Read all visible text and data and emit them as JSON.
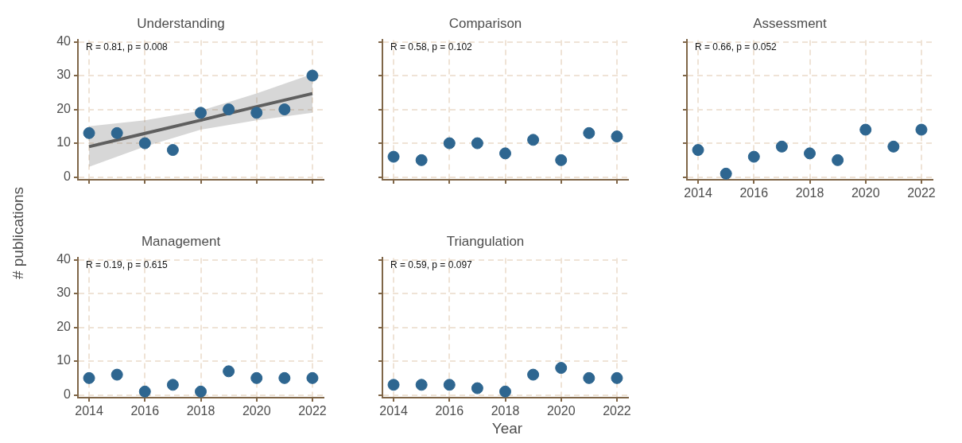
{
  "chart_data": [
    {
      "type": "scatter",
      "title": "Understanding",
      "x": [
        2014,
        2015,
        2016,
        2017,
        2018,
        2019,
        2020,
        2021,
        2022
      ],
      "xlim": [
        2013.6,
        2022.4
      ],
      "ylim": [
        -0.8,
        40.5
      ],
      "xticks": [
        2014,
        2016,
        2018,
        2020,
        2022
      ],
      "yticks": [
        0,
        10,
        20,
        30,
        40
      ],
      "grid": true,
      "marker": "circle",
      "tick_labels": "y",
      "annotations": [
        "R = 0.81, p = 0.008"
      ],
      "series": [
        {
          "color": "#2e6690",
          "values": [
            13,
            13,
            10,
            8,
            19,
            20,
            19,
            20,
            30
          ]
        },
        {
          "type": "line",
          "marker": "none",
          "color": "#5f5f5f",
          "x": [
            2014,
            2016,
            2018,
            2020,
            2022
          ],
          "values": [
            9,
            12.9,
            16.8,
            20.8,
            24.7
          ],
          "lower": [
            3,
            9,
            14,
            16.8,
            19
          ],
          "upper": [
            15,
            16.8,
            19.6,
            24.7,
            30.5
          ]
        }
      ]
    },
    {
      "type": "scatter",
      "title": "Comparison",
      "x": [
        2014,
        2015,
        2016,
        2017,
        2018,
        2019,
        2020,
        2021,
        2022
      ],
      "xlim": [
        2013.6,
        2022.4
      ],
      "ylim": [
        -0.8,
        40.5
      ],
      "xticks": [
        2014,
        2016,
        2018,
        2020,
        2022
      ],
      "yticks": [
        0,
        10,
        20,
        30,
        40
      ],
      "grid": true,
      "marker": "circle",
      "tick_labels": false,
      "annotations": [
        "R = 0.58, p = 0.102"
      ],
      "series": [
        {
          "color": "#2e6690",
          "values": [
            6,
            5,
            10,
            10,
            7,
            11,
            5,
            13,
            12
          ]
        }
      ]
    },
    {
      "type": "scatter",
      "title": "Assessment",
      "x": [
        2014,
        2015,
        2016,
        2017,
        2018,
        2019,
        2020,
        2021,
        2022
      ],
      "xlim": [
        2013.6,
        2022.4
      ],
      "ylim": [
        -0.8,
        40.5
      ],
      "xticks": [
        2014,
        2016,
        2018,
        2020,
        2022
      ],
      "yticks": [
        0,
        10,
        20,
        30,
        40
      ],
      "grid": true,
      "marker": "circle",
      "tick_labels": "x",
      "annotations": [
        "R = 0.66, p = 0.052"
      ],
      "series": [
        {
          "color": "#2e6690",
          "values": [
            8,
            1,
            6,
            9,
            7,
            5,
            14,
            9,
            14
          ]
        }
      ]
    },
    {
      "type": "scatter",
      "title": "Management",
      "ylabel": "# publications",
      "x": [
        2014,
        2015,
        2016,
        2017,
        2018,
        2019,
        2020,
        2021,
        2022
      ],
      "xlim": [
        2013.6,
        2022.4
      ],
      "ylim": [
        -0.8,
        40.5
      ],
      "xticks": [
        2014,
        2016,
        2018,
        2020,
        2022
      ],
      "yticks": [
        0,
        10,
        20,
        30,
        40
      ],
      "grid": true,
      "marker": "circle",
      "annotations": [
        "R = 0.19, p = 0.615"
      ],
      "series": [
        {
          "color": "#2e6690",
          "values": [
            5,
            6,
            1,
            3,
            1,
            7,
            5,
            5,
            5
          ]
        }
      ]
    },
    {
      "type": "scatter",
      "title": "Triangulation",
      "xlabel": "Year",
      "x": [
        2014,
        2015,
        2016,
        2017,
        2018,
        2019,
        2020,
        2021,
        2022
      ],
      "xlim": [
        2013.6,
        2022.4
      ],
      "ylim": [
        -0.8,
        40.5
      ],
      "xticks": [
        2014,
        2016,
        2018,
        2020,
        2022
      ],
      "yticks": [
        0,
        10,
        20,
        30,
        40
      ],
      "grid": true,
      "marker": "circle",
      "tick_labels": "x",
      "annotations": [
        "R = 0.59, p = 0.097"
      ],
      "series": [
        {
          "color": "#2e6690",
          "values": [
            3,
            3,
            3,
            2,
            1,
            6,
            8,
            5,
            5
          ]
        }
      ]
    }
  ]
}
